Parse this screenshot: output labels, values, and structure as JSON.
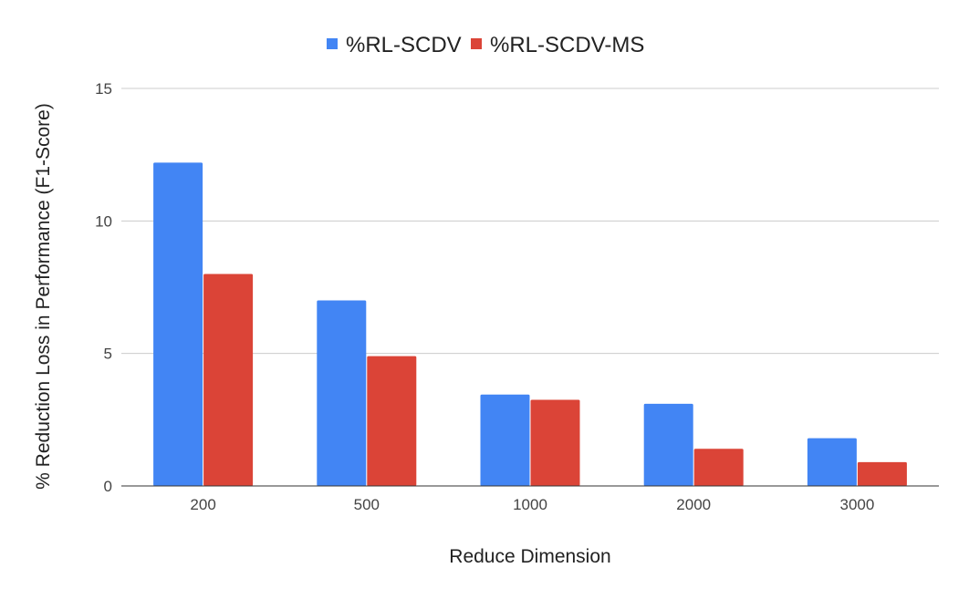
{
  "chart_data": {
    "type": "bar",
    "title": "",
    "categories": [
      "200",
      "500",
      "1000",
      "2000",
      "3000"
    ],
    "series": [
      {
        "name": "%RL-SCDV",
        "color": "#4285f4",
        "values": [
          12.2,
          7.0,
          3.45,
          3.1,
          1.8
        ]
      },
      {
        "name": "%RL-SCDV-MS",
        "color": "#db4437",
        "values": [
          8.0,
          4.9,
          3.25,
          1.4,
          0.9
        ]
      }
    ],
    "xlabel": "Reduce Dimension",
    "ylabel": "% Reduction Loss in Performance (F1-Score)",
    "ylim": [
      0,
      15
    ],
    "yticks": [
      "0",
      "5",
      "10",
      "15"
    ],
    "grid": true,
    "legend_position": "top-center"
  }
}
